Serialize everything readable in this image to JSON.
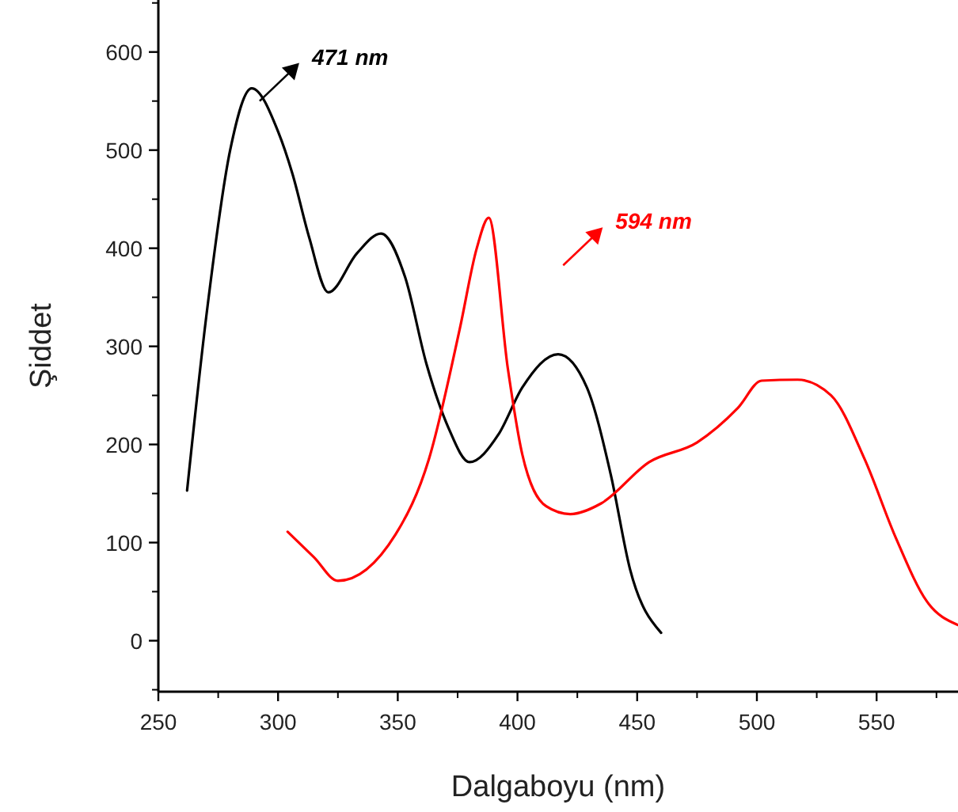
{
  "chart_data": {
    "type": "line",
    "xlabel": "Dalgaboyu (nm)",
    "ylabel": "Şiddet",
    "xlim": [
      250,
      584
    ],
    "xticks": [
      250,
      300,
      350,
      400,
      450,
      500,
      550
    ],
    "ylim": [
      -52,
      653
    ],
    "yticks": [
      0,
      100,
      200,
      300,
      400,
      500,
      600
    ],
    "grid": false,
    "marker": "none",
    "line_style": "solid",
    "annotations": [
      "471 nm",
      "594 nm"
    ],
    "series": [
      {
        "color": "#000000",
        "x": [
          262,
          270,
          280,
          289,
          300,
          306,
          313,
          321,
          333,
          343,
          353,
          362,
          371,
          380,
          392,
          402,
          417,
          429,
          439,
          447,
          460
        ],
        "values": [
          153,
          330,
          500,
          563,
          519,
          476,
          411,
          355,
          395,
          415,
          371,
          282,
          218,
          182,
          210,
          258,
          292,
          258,
          169,
          73,
          8
        ]
      },
      {
        "color": "#ff0000",
        "x": [
          304,
          315,
          325,
          349,
          363,
          376,
          383,
          388,
          396,
          402,
          412,
          422,
          435,
          455,
          475,
          492,
          502,
          517,
          531,
          545,
          558,
          571,
          584
        ],
        "values": [
          111,
          85,
          61,
          108,
          185,
          319,
          400,
          431,
          277,
          190,
          137,
          129,
          140,
          182,
          202,
          237,
          265,
          266,
          250,
          185,
          105,
          40,
          16
        ]
      }
    ]
  }
}
